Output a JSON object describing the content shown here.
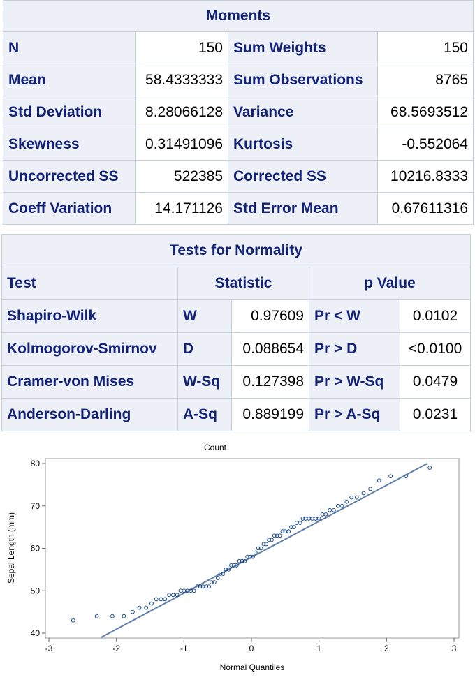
{
  "moments": {
    "title": "Moments",
    "rows": [
      {
        "l1": "N",
        "v1": "150",
        "l2": "Sum Weights",
        "v2": "150"
      },
      {
        "l1": "Mean",
        "v1": "58.4333333",
        "l2": "Sum Observations",
        "v2": "8765"
      },
      {
        "l1": "Std Deviation",
        "v1": "8.28066128",
        "l2": "Variance",
        "v2": "68.5693512"
      },
      {
        "l1": "Skewness",
        "v1": "0.31491096",
        "l2": "Kurtosis",
        "v2": "-0.552064"
      },
      {
        "l1": "Uncorrected SS",
        "v1": "522385",
        "l2": "Corrected SS",
        "v2": "10216.8333"
      },
      {
        "l1": "Coeff Variation",
        "v1": "14.171126",
        "l2": "Std Error Mean",
        "v2": "0.67611316"
      }
    ]
  },
  "normality": {
    "title": "Tests for Normality",
    "headers": {
      "test": "Test",
      "statistic": "Statistic",
      "pvalue": "p Value"
    },
    "rows": [
      {
        "test": "Shapiro-Wilk",
        "sym": "W",
        "stat": "0.97609",
        "psym": "Pr < W",
        "p": "0.0102"
      },
      {
        "test": "Kolmogorov-Smirnov",
        "sym": "D",
        "stat": "0.088654",
        "psym": "Pr > D",
        "p": "<0.0100"
      },
      {
        "test": "Cramer-von Mises",
        "sym": "W-Sq",
        "stat": "0.127398",
        "psym": "Pr > W-Sq",
        "p": "0.0479"
      },
      {
        "test": "Anderson-Darling",
        "sym": "A-Sq",
        "stat": "0.889199",
        "psym": "Pr > A-Sq",
        "p": "0.0231"
      }
    ]
  },
  "chart_data": {
    "type": "scatter",
    "title": "Count",
    "xlabel": "Normal Quantiles",
    "ylabel": "Sepal Length (mm)",
    "xlim": [
      -3,
      3
    ],
    "ylim": [
      40,
      80
    ],
    "xticks": [
      "-3",
      "-2",
      "-1",
      "0",
      "1",
      "2",
      "3"
    ],
    "yticks": [
      "40",
      "50",
      "60",
      "70",
      "80"
    ],
    "grid": false,
    "reference_line": {
      "intercept": 58.4333333,
      "slope": 8.28066128
    },
    "series": [
      {
        "marker": "open-circle",
        "color": "#1a4a90",
        "x": [
          -2.64,
          -2.29,
          -2.06,
          -1.89,
          -1.76,
          -1.66,
          -1.56,
          -1.48,
          -1.41,
          -1.34,
          -1.28,
          -1.22,
          -1.16,
          -1.1,
          -1.05,
          -1.0,
          -0.95,
          -0.9,
          -0.85,
          -0.8,
          -0.76,
          -0.72,
          -0.67,
          -0.63,
          -0.59,
          -0.55,
          -0.5,
          -0.46,
          -0.42,
          -0.38,
          -0.34,
          -0.3,
          -0.26,
          -0.22,
          -0.18,
          -0.14,
          -0.1,
          -0.06,
          -0.02,
          0.02,
          0.06,
          0.1,
          0.14,
          0.18,
          0.22,
          0.26,
          0.3,
          0.34,
          0.38,
          0.42,
          0.46,
          0.5,
          0.55,
          0.59,
          0.63,
          0.67,
          0.72,
          0.76,
          0.8,
          0.85,
          0.9,
          0.95,
          1.0,
          1.05,
          1.1,
          1.16,
          1.22,
          1.28,
          1.34,
          1.41,
          1.48,
          1.56,
          1.66,
          1.76,
          1.89,
          2.06,
          2.29,
          2.64
        ],
        "y": [
          43,
          44,
          44,
          44,
          45,
          46,
          46,
          47,
          48,
          48,
          48,
          49,
          49,
          49,
          50,
          50,
          50,
          50,
          50,
          51,
          51,
          51,
          51,
          51,
          52,
          52,
          53,
          54,
          54,
          55,
          55,
          56,
          56,
          56,
          57,
          57,
          57,
          58,
          58,
          58,
          59,
          60,
          60,
          61,
          61,
          62,
          62,
          63,
          63,
          63,
          64,
          64,
          64,
          65,
          65,
          66,
          66,
          67,
          67,
          67,
          67,
          67,
          67,
          68,
          68,
          69,
          69,
          70,
          70,
          71,
          72,
          72,
          73,
          74,
          76,
          77,
          77,
          79
        ]
      }
    ]
  }
}
